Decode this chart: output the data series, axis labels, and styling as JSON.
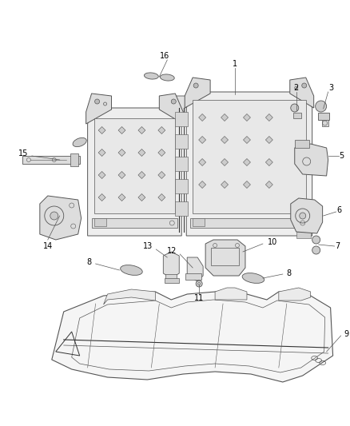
{
  "background_color": "#ffffff",
  "line_color": "#555555",
  "dark_line": "#333333",
  "light_fill": "#f0f0f0",
  "mid_fill": "#e0e0e0",
  "dark_fill": "#cccccc",
  "figure_width": 4.38,
  "figure_height": 5.33,
  "dpi": 100,
  "label_fontsize": 7,
  "label_color": "#000000",
  "leader_color": "#555555",
  "leader_lw": 0.5
}
